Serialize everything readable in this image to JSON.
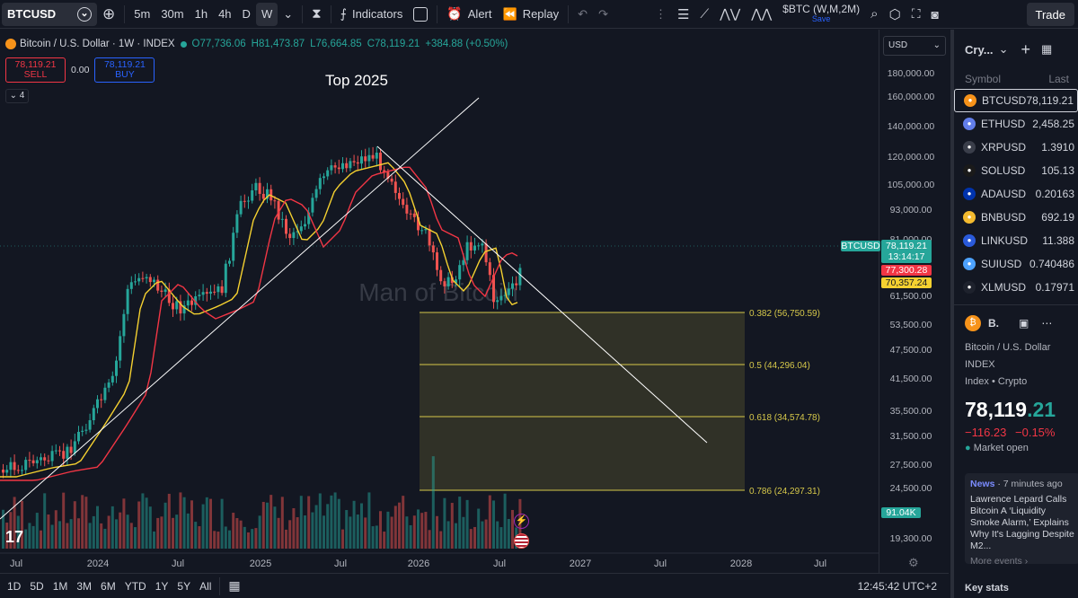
{
  "toolbar": {
    "symbol": "BTCUSD",
    "timeframes": [
      "5m",
      "30m",
      "1h",
      "4h",
      "D",
      "W"
    ],
    "active_timeframe": "W",
    "indicators_label": "Indicators",
    "alert_label": "Alert",
    "replay_label": "Replay",
    "layout_name": "$BTC (W,M,2M)",
    "layout_status": "Save",
    "trade_label": "Trade"
  },
  "legend": {
    "title": "Bitcoin / U.S. Dollar · 1W · INDEX",
    "open": "O77,736.06",
    "high": "H81,473.87",
    "low": "L76,664.85",
    "close": "C78,119.21",
    "change": "+384.88 (+0.50%)",
    "sell_price": "78,119.21",
    "sell_label": "SELL",
    "spread": "0.00",
    "buy_price": "78,119.21",
    "buy_label": "BUY",
    "indicator_count": "4"
  },
  "chart_data": {
    "type": "candlestick",
    "title": "Bitcoin / U.S. Dollar · 1W · INDEX",
    "annotation": "Top 2025",
    "watermark": "Man of Bitcoin",
    "price_axis": [
      "180,000.00",
      "160,000.00",
      "140,000.00",
      "120,000.00",
      "105,000.00",
      "93,000.00",
      "81,000.00",
      "61,500.00",
      "53,500.00",
      "47,500.00",
      "41,500.00",
      "35,500.00",
      "31,500.00",
      "27,500.00",
      "24,500.00",
      "19,300.00"
    ],
    "time_axis": [
      "Jul",
      "2024",
      "Jul",
      "2025",
      "Jul",
      "2026",
      "Jul",
      "2027",
      "Jul",
      "2028",
      "Jul"
    ],
    "currency": "USD",
    "fib_levels": [
      {
        "ratio": 0.382,
        "label": "0.382 (56,750.59)",
        "price": 56750.59
      },
      {
        "ratio": 0.5,
        "label": "0.5 (44,296.04)",
        "price": 44296.04
      },
      {
        "ratio": 0.618,
        "label": "0.618 (34,574.78)",
        "price": 34574.78
      },
      {
        "ratio": 0.786,
        "label": "0.786 (24,297.31)",
        "price": 24297.31
      }
    ],
    "last_price": "78,119.21",
    "countdown": "13:14:17",
    "ma_red": "77,300.28",
    "ma_yellow": "70,357.24",
    "volume": "91.04K",
    "symbol_tag": "BTCUSD",
    "colors": {
      "up": "#26a69a",
      "down": "#ef5350",
      "ma_red": "#f23645",
      "ma_yellow": "#f5d130",
      "fib": "#d6c84a"
    }
  },
  "bottombar": {
    "ranges": [
      "1D",
      "5D",
      "1M",
      "3M",
      "6M",
      "YTD",
      "1Y",
      "5Y",
      "All"
    ],
    "clock": "12:45:42 UTC+2"
  },
  "watchlist": {
    "title": "Cry...",
    "col_symbol": "Symbol",
    "col_last": "Last",
    "rows": [
      {
        "symbol": "BTCUSD",
        "last": "78,119.21",
        "color": "#f7931a"
      },
      {
        "symbol": "ETHUSD",
        "last": "2,458.25",
        "color": "#627eea"
      },
      {
        "symbol": "XRPUSD",
        "last": "1.3910",
        "color": "#3a3e4a"
      },
      {
        "symbol": "SOLUSD",
        "last": "105.13",
        "color": "#1a1a1a"
      },
      {
        "symbol": "ADAUSD",
        "last": "0.20163",
        "color": "#0033ad"
      },
      {
        "symbol": "BNBUSD",
        "last": "692.19",
        "color": "#f3ba2f"
      },
      {
        "symbol": "LINKUSD",
        "last": "11.388",
        "color": "#2a5ada"
      },
      {
        "symbol": "SUIUSD",
        "last": "0.740486",
        "color": "#4da2ff"
      },
      {
        "symbol": "XLMUSD",
        "last": "0.17971",
        "color": "#1e222d"
      }
    ]
  },
  "details": {
    "name": "B.",
    "full_name": "Bitcoin / U.S. Dollar",
    "exchange": "INDEX",
    "category": "Index • Crypto",
    "price_main": "78,119",
    "price_tail": ".21",
    "change": "−116.23",
    "change_pct": "−0.15%",
    "market_status": "Market open",
    "news_tag": "News",
    "news_time": "7 minutes ago",
    "news_headline": "Lawrence Lepard Calls Bitcoin A ‘Liquidity Smoke Alarm,’ Explains Why It's Lagging Despite M2...",
    "more_events": "More events ›",
    "key_stats": "Key stats"
  }
}
